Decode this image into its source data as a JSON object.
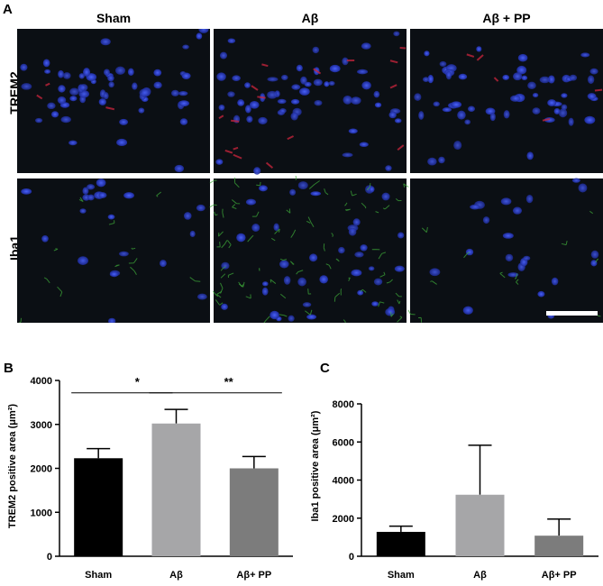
{
  "panel_a": {
    "letter": "A",
    "columns": [
      "Sham",
      "Aβ",
      "Aβ + PP"
    ],
    "rows": [
      "TREM2",
      "Iba1"
    ],
    "colors": {
      "background": "#0b0f14",
      "nuclei": "#2b3fd6",
      "trem2": "#c0243a",
      "iba1": "#3fae3a"
    }
  },
  "chart_data": [
    {
      "panel": "B",
      "type": "bar",
      "categories": [
        "Sham",
        "Aβ",
        "Aβ+ PP"
      ],
      "values": [
        2230,
        3020,
        2000
      ],
      "errors": [
        220,
        320,
        270
      ],
      "colors": [
        "#000000",
        "#a6a6a8",
        "#7c7c7c"
      ],
      "ylabel": "TREM2 positive area (μm²)",
      "ylim": [
        0,
        4000
      ],
      "yticks": [
        "0",
        "1000",
        "2000",
        "3000",
        "4000"
      ],
      "significance": [
        {
          "pair": [
            "Sham",
            "Aβ"
          ],
          "label": "*"
        },
        {
          "pair": [
            "Aβ",
            "Aβ+ PP"
          ],
          "label": "**"
        }
      ]
    },
    {
      "panel": "C",
      "type": "bar",
      "categories": [
        "Sham",
        "Aβ",
        "Aβ+ PP"
      ],
      "values": [
        1280,
        3230,
        1080
      ],
      "errors": [
        300,
        2600,
        870
      ],
      "colors": [
        "#000000",
        "#a6a6a8",
        "#7c7c7c"
      ],
      "ylabel": "Iba1 positive area (μm²)",
      "ylim": [
        0,
        8000
      ],
      "yticks": [
        "0",
        "2000",
        "4000",
        "6000",
        "8000"
      ],
      "significance": []
    }
  ]
}
